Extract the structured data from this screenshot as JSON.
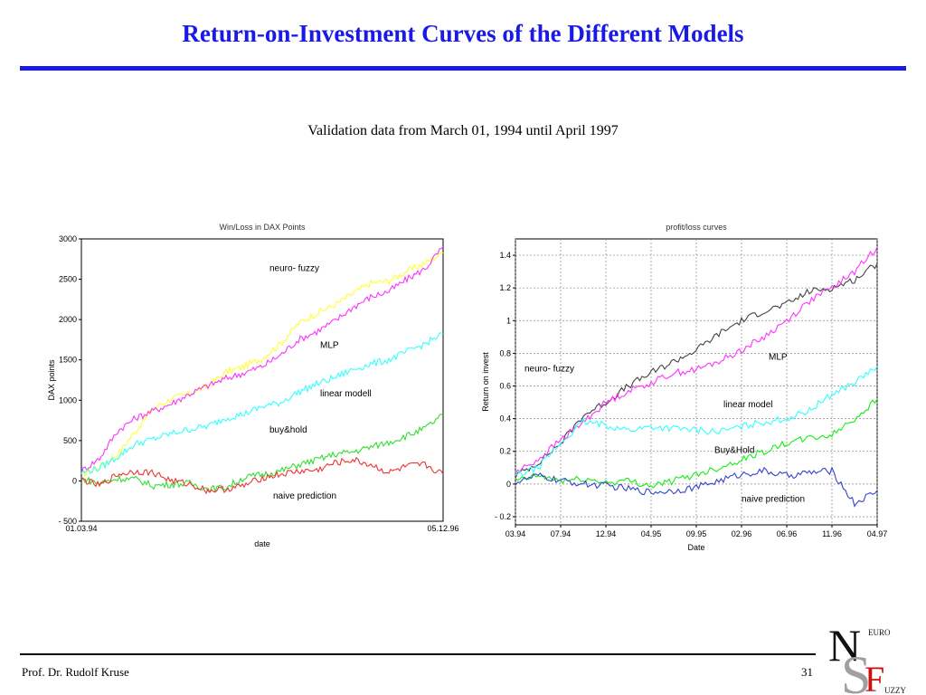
{
  "slide": {
    "title": "Return-on-Investment Curves of the Different Models",
    "subtitle": "Validation data from March 01, 1994 until April 1997",
    "footer_author": "Prof. Dr. Rudolf Kruse",
    "page_number": "31"
  },
  "logo": {
    "letters": [
      "N",
      "S",
      "F"
    ],
    "small_top": "EURO",
    "small_bottom": "UZZY",
    "colors": {
      "dark": "#111111",
      "gray": "#a0a0a0",
      "red": "#cc1111"
    }
  },
  "chart_data": [
    {
      "type": "line",
      "title": "Win/Loss in DAX Points",
      "xlabel": "date",
      "ylabel": "DAX points",
      "x_ticks": [
        "01.03.94",
        "05.12.96"
      ],
      "y_ticks": [
        "3000",
        "2500",
        "2000",
        "1500",
        "1000",
        "500",
        "0",
        "- 500"
      ],
      "y_tick_values": [
        3000,
        2500,
        2000,
        1500,
        1000,
        500,
        0,
        -500
      ],
      "ylim": [
        -500,
        3000
      ],
      "xlim": [
        0,
        1
      ],
      "grid": false,
      "annotations": [
        {
          "text": "neuro- fuzzy",
          "x": 0.52,
          "y": 2600
        },
        {
          "text": "MLP",
          "x": 0.66,
          "y": 1650
        },
        {
          "text": "linear modell",
          "x": 0.66,
          "y": 1050
        },
        {
          "text": "buy&hold",
          "x": 0.52,
          "y": 600
        },
        {
          "text": "naive prediction",
          "x": 0.53,
          "y": -220
        }
      ],
      "series": [
        {
          "color": "#ffff33",
          "points": [
            [
              0,
              80
            ],
            [
              0.05,
              180
            ],
            [
              0.1,
              330
            ],
            [
              0.15,
              620
            ],
            [
              0.2,
              900
            ],
            [
              0.25,
              1020
            ],
            [
              0.3,
              1080
            ],
            [
              0.35,
              1180
            ],
            [
              0.4,
              1350
            ],
            [
              0.45,
              1420
            ],
            [
              0.5,
              1520
            ],
            [
              0.55,
              1700
            ],
            [
              0.6,
              1950
            ],
            [
              0.65,
              2080
            ],
            [
              0.7,
              2180
            ],
            [
              0.75,
              2320
            ],
            [
              0.8,
              2450
            ],
            [
              0.85,
              2480
            ],
            [
              0.9,
              2600
            ],
            [
              0.95,
              2700
            ],
            [
              1.0,
              2830
            ]
          ]
        },
        {
          "color": "#ff33ff",
          "points": [
            [
              0,
              120
            ],
            [
              0.05,
              280
            ],
            [
              0.1,
              620
            ],
            [
              0.15,
              780
            ],
            [
              0.2,
              870
            ],
            [
              0.25,
              960
            ],
            [
              0.3,
              1080
            ],
            [
              0.35,
              1180
            ],
            [
              0.4,
              1270
            ],
            [
              0.45,
              1340
            ],
            [
              0.5,
              1420
            ],
            [
              0.55,
              1560
            ],
            [
              0.6,
              1750
            ],
            [
              0.65,
              1850
            ],
            [
              0.7,
              1980
            ],
            [
              0.75,
              2150
            ],
            [
              0.8,
              2280
            ],
            [
              0.85,
              2350
            ],
            [
              0.9,
              2500
            ],
            [
              0.95,
              2630
            ],
            [
              1.0,
              2900
            ]
          ]
        },
        {
          "color": "#33ffff",
          "points": [
            [
              0,
              100
            ],
            [
              0.05,
              160
            ],
            [
              0.1,
              300
            ],
            [
              0.15,
              460
            ],
            [
              0.2,
              520
            ],
            [
              0.25,
              590
            ],
            [
              0.3,
              640
            ],
            [
              0.35,
              680
            ],
            [
              0.4,
              780
            ],
            [
              0.45,
              830
            ],
            [
              0.5,
              920
            ],
            [
              0.55,
              970
            ],
            [
              0.6,
              1100
            ],
            [
              0.65,
              1200
            ],
            [
              0.7,
              1280
            ],
            [
              0.75,
              1380
            ],
            [
              0.8,
              1450
            ],
            [
              0.85,
              1500
            ],
            [
              0.9,
              1600
            ],
            [
              0.95,
              1700
            ],
            [
              1.0,
              1830
            ]
          ]
        },
        {
          "color": "#33dd33",
          "points": [
            [
              0,
              30
            ],
            [
              0.05,
              -30
            ],
            [
              0.1,
              30
            ],
            [
              0.15,
              20
            ],
            [
              0.2,
              -60
            ],
            [
              0.25,
              -40
            ],
            [
              0.3,
              -30
            ],
            [
              0.35,
              -100
            ],
            [
              0.4,
              -80
            ],
            [
              0.45,
              40
            ],
            [
              0.5,
              80
            ],
            [
              0.55,
              120
            ],
            [
              0.6,
              200
            ],
            [
              0.65,
              260
            ],
            [
              0.7,
              330
            ],
            [
              0.75,
              360
            ],
            [
              0.8,
              420
            ],
            [
              0.85,
              480
            ],
            [
              0.9,
              560
            ],
            [
              0.95,
              650
            ],
            [
              1.0,
              820
            ]
          ]
        },
        {
          "color": "#ee3333",
          "points": [
            [
              0,
              20
            ],
            [
              0.05,
              -60
            ],
            [
              0.1,
              80
            ],
            [
              0.15,
              120
            ],
            [
              0.2,
              100
            ],
            [
              0.25,
              0
            ],
            [
              0.3,
              -40
            ],
            [
              0.35,
              -120
            ],
            [
              0.4,
              -100
            ],
            [
              0.45,
              -60
            ],
            [
              0.5,
              40
            ],
            [
              0.55,
              80
            ],
            [
              0.6,
              120
            ],
            [
              0.65,
              130
            ],
            [
              0.7,
              220
            ],
            [
              0.75,
              260
            ],
            [
              0.8,
              200
            ],
            [
              0.85,
              100
            ],
            [
              0.9,
              180
            ],
            [
              0.95,
              200
            ],
            [
              1.0,
              80
            ]
          ]
        }
      ]
    },
    {
      "type": "line",
      "title": "profit/loss curves",
      "xlabel": "Date",
      "ylabel": "Return on invest",
      "x_ticks": [
        "03.94",
        "07.94",
        "12.94",
        "04.95",
        "09.95",
        "02.96",
        "06.96",
        "11.96",
        "04.97"
      ],
      "y_ticks": [
        "1.4",
        "1.2",
        "1",
        "0.8",
        "0.6",
        "0.4",
        "0.2",
        "0",
        "- 0.2"
      ],
      "y_tick_values": [
        1.4,
        1.2,
        1.0,
        0.8,
        0.6,
        0.4,
        0.2,
        0,
        -0.2
      ],
      "ylim": [
        -0.25,
        1.5
      ],
      "xlim": [
        0,
        8
      ],
      "grid": true,
      "annotations": [
        {
          "text": "neuro- fuzzy",
          "x": 0.2,
          "y": 0.69
        },
        {
          "text": "MLP",
          "x": 5.6,
          "y": 0.76
        },
        {
          "text": "linear model",
          "x": 4.6,
          "y": 0.47
        },
        {
          "text": "Buy&Hold",
          "x": 4.4,
          "y": 0.19
        },
        {
          "text": "naive prediction",
          "x": 5.0,
          "y": -0.11
        }
      ],
      "series": [
        {
          "color": "#444444",
          "points": [
            [
              0,
              0.05
            ],
            [
              0.5,
              0.13
            ],
            [
              1,
              0.25
            ],
            [
              1.5,
              0.42
            ],
            [
              2,
              0.5
            ],
            [
              2.5,
              0.6
            ],
            [
              3,
              0.68
            ],
            [
              3.5,
              0.75
            ],
            [
              4,
              0.82
            ],
            [
              4.5,
              0.92
            ],
            [
              5,
              1.0
            ],
            [
              5.5,
              1.06
            ],
            [
              6,
              1.1
            ],
            [
              6.5,
              1.18
            ],
            [
              7,
              1.2
            ],
            [
              7.5,
              1.25
            ],
            [
              8,
              1.35
            ]
          ]
        },
        {
          "color": "#ff33ff",
          "points": [
            [
              0,
              0.07
            ],
            [
              0.5,
              0.15
            ],
            [
              1,
              0.27
            ],
            [
              1.5,
              0.38
            ],
            [
              2,
              0.5
            ],
            [
              2.5,
              0.57
            ],
            [
              3,
              0.62
            ],
            [
              3.5,
              0.68
            ],
            [
              4,
              0.7
            ],
            [
              4.5,
              0.75
            ],
            [
              5,
              0.82
            ],
            [
              5.5,
              0.9
            ],
            [
              6,
              1.0
            ],
            [
              6.5,
              1.12
            ],
            [
              7,
              1.2
            ],
            [
              7.5,
              1.3
            ],
            [
              8,
              1.45
            ]
          ]
        },
        {
          "color": "#33ffff",
          "points": [
            [
              0,
              0.05
            ],
            [
              0.5,
              0.1
            ],
            [
              1,
              0.25
            ],
            [
              1.5,
              0.38
            ],
            [
              2,
              0.36
            ],
            [
              2.5,
              0.33
            ],
            [
              3,
              0.35
            ],
            [
              3.5,
              0.34
            ],
            [
              4,
              0.33
            ],
            [
              4.5,
              0.32
            ],
            [
              5,
              0.35
            ],
            [
              5.5,
              0.38
            ],
            [
              6,
              0.4
            ],
            [
              6.5,
              0.45
            ],
            [
              7,
              0.55
            ],
            [
              7.5,
              0.62
            ],
            [
              8,
              0.72
            ]
          ]
        },
        {
          "color": "#11ee11",
          "points": [
            [
              0,
              0.02
            ],
            [
              0.5,
              0.05
            ],
            [
              1,
              0.02
            ],
            [
              1.5,
              0.03
            ],
            [
              2,
              0.01
            ],
            [
              2.5,
              0.02
            ],
            [
              3,
              -0.01
            ],
            [
              3.5,
              0.02
            ],
            [
              4,
              0.06
            ],
            [
              4.5,
              0.1
            ],
            [
              5,
              0.15
            ],
            [
              5.5,
              0.2
            ],
            [
              6,
              0.25
            ],
            [
              6.5,
              0.28
            ],
            [
              7,
              0.3
            ],
            [
              7.5,
              0.4
            ],
            [
              8,
              0.52
            ]
          ]
        },
        {
          "color": "#3344cc",
          "points": [
            [
              0,
              0.01
            ],
            [
              0.5,
              0.05
            ],
            [
              1,
              0.02
            ],
            [
              1.5,
              0.0
            ],
            [
              2,
              -0.01
            ],
            [
              2.5,
              -0.03
            ],
            [
              3,
              -0.05
            ],
            [
              3.5,
              -0.04
            ],
            [
              4,
              -0.02
            ],
            [
              4.5,
              0.02
            ],
            [
              5,
              0.06
            ],
            [
              5.5,
              0.08
            ],
            [
              6,
              0.05
            ],
            [
              6.5,
              0.07
            ],
            [
              7,
              0.08
            ],
            [
              7.5,
              -0.12
            ],
            [
              8,
              -0.04
            ]
          ]
        }
      ]
    }
  ]
}
